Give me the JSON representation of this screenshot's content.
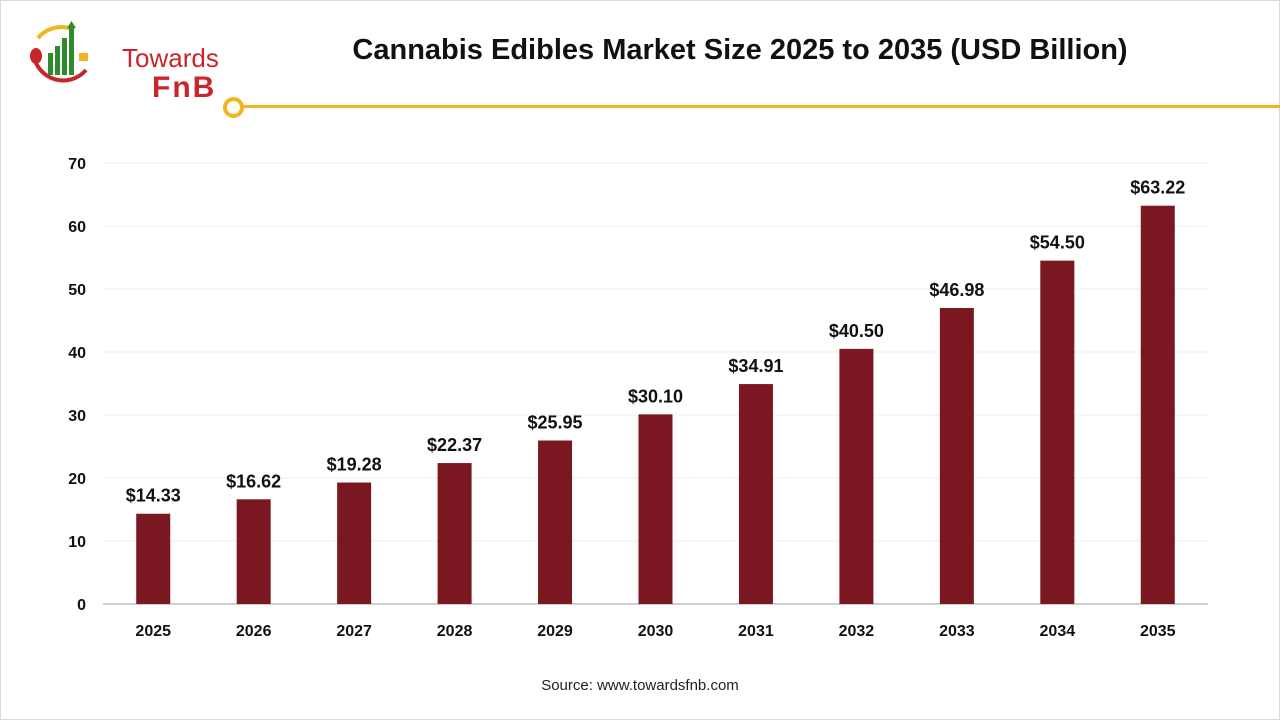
{
  "title": "Cannabis Edibles Market Size 2025 to 2035 (USD Billion)",
  "logo": {
    "line1": "Towards",
    "line2": "FnB"
  },
  "source": "Source: www.towardsfnb.com",
  "colors": {
    "bar": "#7b1720",
    "accent": "#f2b420",
    "brand_red": "#c8262c",
    "brand_green": "#2e8b2e"
  },
  "chart_data": {
    "type": "bar",
    "title": "Cannabis Edibles Market Size 2025 to 2035 (USD Billion)",
    "xlabel": "",
    "ylabel": "",
    "categories": [
      "2025",
      "2026",
      "2027",
      "2028",
      "2029",
      "2030",
      "2031",
      "2032",
      "2033",
      "2034",
      "2035"
    ],
    "values": [
      14.33,
      16.62,
      19.28,
      22.37,
      25.95,
      30.1,
      34.91,
      40.5,
      46.98,
      54.5,
      63.22
    ],
    "data_labels": [
      "$14.33",
      "$16.62",
      "$19.28",
      "$22.37",
      "$25.95",
      "$30.10",
      "$34.91",
      "$40.50",
      "$46.98",
      "$54.50",
      "$63.22"
    ],
    "ylim": [
      0,
      70
    ],
    "yticks": [
      "0",
      "10",
      "20",
      "30",
      "40",
      "50",
      "60",
      "70"
    ],
    "grid": true,
    "legend": "none"
  }
}
